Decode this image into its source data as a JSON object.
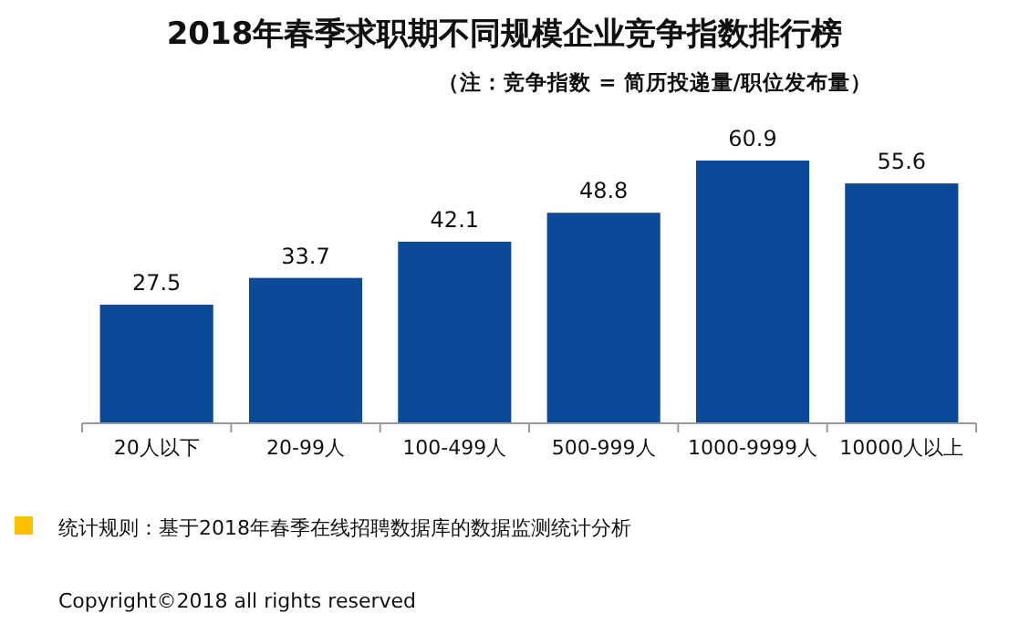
{
  "chart_data": {
    "type": "bar",
    "title": "2018年春季求职期不同规模企业竞争指数排行榜",
    "subtitle": "（注：竞争指数 = 简历投递量/职位发布量）",
    "categories": [
      "20人以下",
      "20-99人",
      "100-499人",
      "500-999人",
      "1000-9999人",
      "10000人以上"
    ],
    "values": [
      27.5,
      33.7,
      42.1,
      48.8,
      60.9,
      55.6
    ],
    "color": "#0b4a98",
    "data_labels": true,
    "annotations": [
      "统计规则：基于2018年春季在线招聘数据库的数据监测统计分析",
      "Copyright©2018 all rights reserved"
    ]
  }
}
